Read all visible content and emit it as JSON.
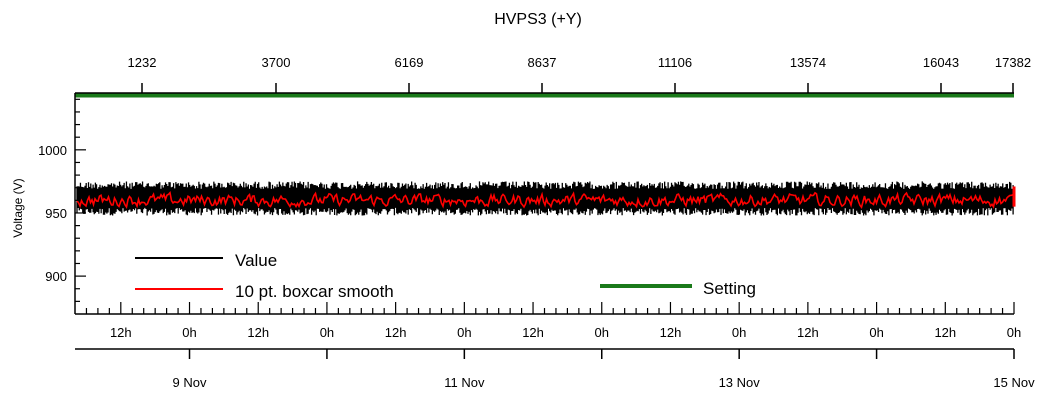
{
  "chart_data": {
    "type": "line",
    "title": "HVPS3 (+Y)",
    "ylabel": "Voltage (V)",
    "ylim": [
      870,
      1045
    ],
    "y_ticks": [
      900,
      950,
      1000
    ],
    "x_range_days": [
      "8 Nov 04:00",
      "15 Nov 00:00"
    ],
    "top_axis_ticks": [
      "1232",
      "3700",
      "6169",
      "8637",
      "11106",
      "13574",
      "16043",
      "17382"
    ],
    "hour_tick_labels": [
      "12h",
      "0h",
      "12h",
      "0h",
      "12h",
      "0h",
      "12h",
      "0h",
      "12h",
      "0h",
      "12h",
      "0h",
      "12h",
      "0h"
    ],
    "date_tick_labels": [
      "9 Nov",
      "11 Nov",
      "13 Nov",
      "15 Nov"
    ],
    "legend": "bottom-left",
    "grid": false,
    "series": [
      {
        "name": "Value",
        "color": "#000000",
        "band": [
          948,
          975
        ],
        "center": 962
      },
      {
        "name": "10 pt. boxcar smooth",
        "color": "#ff0000",
        "band": [
          953,
          970
        ],
        "center": 960
      },
      {
        "name": "Setting",
        "color": "#1a7a1a",
        "value": 1043
      }
    ]
  }
}
